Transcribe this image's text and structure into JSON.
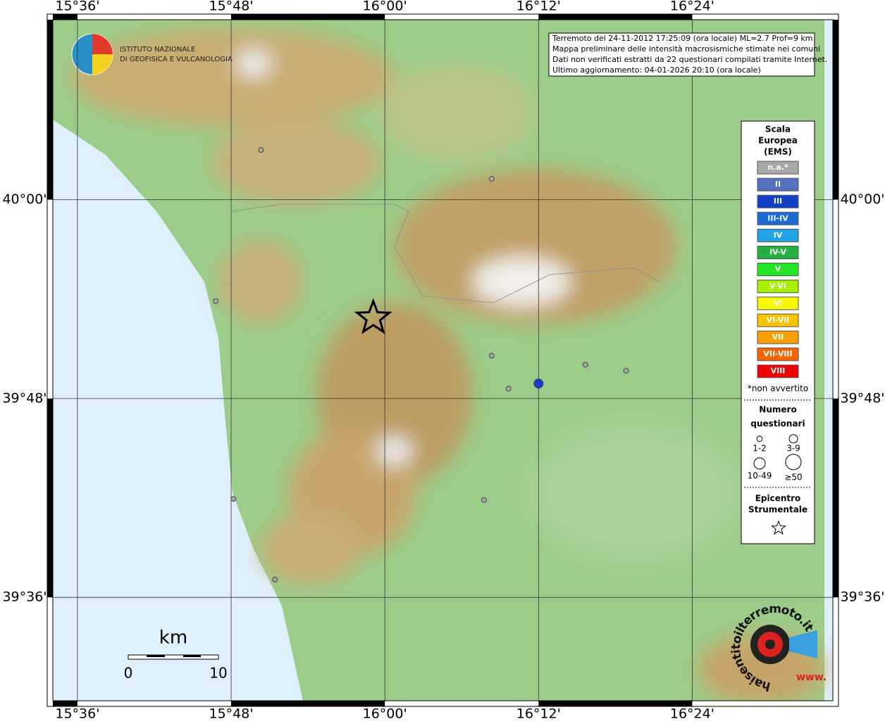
{
  "logo": [
    "ISTITUTO NAZIONALE",
    "DI GEOFISICA E VULCANOLOGIA"
  ],
  "map": {
    "lon_range": [
      15.568,
      16.583
    ],
    "lat_range": [
      39.496,
      40.181
    ],
    "lon_ticks": [
      {
        "value": 15.6,
        "label": "15°36'"
      },
      {
        "value": 15.8,
        "label": "15°48'"
      },
      {
        "value": 16.0,
        "label": "16°00'"
      },
      {
        "value": 16.2,
        "label": "16°12'"
      },
      {
        "value": 16.4,
        "label": "16°24'"
      }
    ],
    "lat_ticks": [
      {
        "value": 40.0,
        "label": "40°00'"
      },
      {
        "value": 39.8,
        "label": "39°48'"
      },
      {
        "value": 39.6,
        "label": "39°36'"
      }
    ]
  },
  "info": [
    "Terremoto del 24-11-2012 17:25:09 (ora locale) ML=2.7 Prof=9 km",
    "Mappa preliminare delle intensità macrosismiche stimate nei comuni",
    "Dati non verificati estratti da 22 questionari compilati tramite Internet.",
    "Ultimo aggiornamento: 04-01-2026 20:10 (ora locale)"
  ],
  "legend": {
    "title": [
      "Scala",
      "Europea",
      "(EMS)"
    ],
    "intensity": [
      {
        "label": "n.a.*",
        "color": "#a8a8a8"
      },
      {
        "label": "II",
        "color": "#5470c0"
      },
      {
        "label": "III",
        "color": "#1040c8"
      },
      {
        "label": "III-IV",
        "color": "#1a6cd4"
      },
      {
        "label": "IV",
        "color": "#22a4e4"
      },
      {
        "label": "IV-V",
        "color": "#22b040"
      },
      {
        "label": "V",
        "color": "#22e622"
      },
      {
        "label": "V-VI",
        "color": "#a6f000"
      },
      {
        "label": "VI",
        "color": "#f8f800"
      },
      {
        "label": "VI-VII",
        "color": "#f8c400"
      },
      {
        "label": "VII",
        "color": "#f8a000"
      },
      {
        "label": "VII-VIII",
        "color": "#f86400"
      },
      {
        "label": "VIII",
        "color": "#f00000"
      }
    ],
    "note": "*non avvertito",
    "count_title": [
      "Numero",
      "questionari"
    ],
    "count_sizes": [
      "1-2",
      "3-9",
      "10-49",
      "≥50"
    ],
    "epicenter_title": [
      "Epicentro",
      "Strumentale"
    ]
  },
  "points": [
    {
      "lon": 15.839,
      "lat": 40.05,
      "color": "#a8a8a8"
    },
    {
      "lon": 16.139,
      "lat": 40.021,
      "color": "#a8a8a8"
    },
    {
      "lon": 15.78,
      "lat": 39.898,
      "color": "#a8a8a8"
    },
    {
      "lon": 16.139,
      "lat": 39.843,
      "color": "#a8a8a8"
    },
    {
      "lon": 16.161,
      "lat": 39.81,
      "color": "#a8a8a8"
    },
    {
      "lon": 16.261,
      "lat": 39.834,
      "color": "#a8a8a8"
    },
    {
      "lon": 16.314,
      "lat": 39.828,
      "color": "#a8a8a8"
    },
    {
      "lon": 16.129,
      "lat": 39.698,
      "color": "#a8a8a8"
    },
    {
      "lon": 15.857,
      "lat": 39.618,
      "color": "#a8a8a8"
    },
    {
      "lon": 15.803,
      "lat": 39.699,
      "color": "#a8a8a8"
    },
    {
      "lon": 16.2,
      "lat": 39.815,
      "color": "#1a3cc8"
    }
  ],
  "epicenter": {
    "lon": 15.985,
    "lat": 39.881
  },
  "scale_bar": {
    "unit": "km",
    "ticks": [
      0,
      10
    ]
  },
  "badge": {
    "url": "haisentitoilterremoto.it",
    "prefix": "www."
  }
}
